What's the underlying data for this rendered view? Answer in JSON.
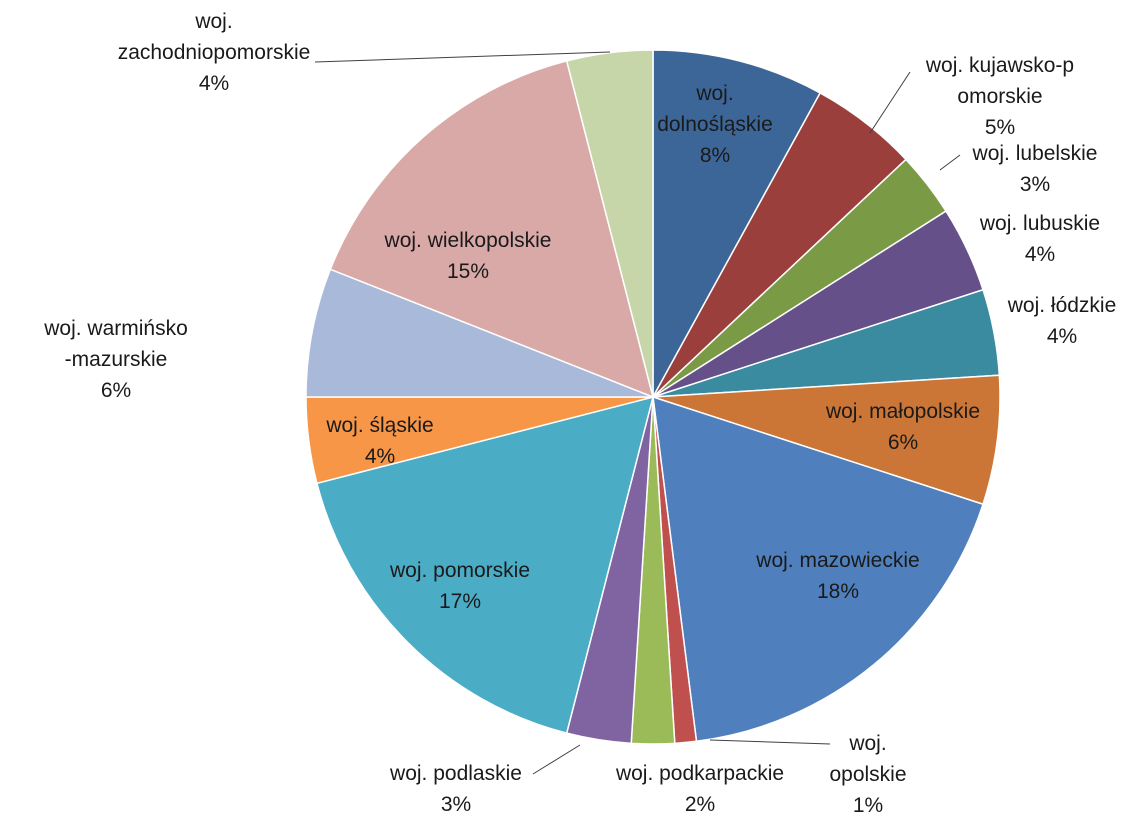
{
  "chart_data": {
    "type": "pie",
    "title": "",
    "series": [
      {
        "values": [
          8,
          5,
          3,
          4,
          4,
          6,
          18,
          1,
          2,
          3,
          17,
          4,
          6,
          15,
          4
        ],
        "labels": [
          "woj. dolnośląskie",
          "woj. kujawsko-pomorskie",
          "woj. lubelskie",
          "woj. lubuskie",
          "woj. łódzkie",
          "woj. małopolskie",
          "woj. mazowieckie",
          "woj. opolskie",
          "woj. podkarpackie",
          "woj. podlaskie",
          "woj. pomorskie",
          "woj. śląskie",
          "woj. warmińsko-mazurskie",
          "woj. wielkopolskie",
          "woj. zachodniopomorskie"
        ],
        "percent_labels": [
          "8%",
          "5%",
          "3%",
          "4%",
          "4%",
          "6%",
          "18%",
          "1%",
          "2%",
          "3%",
          "17%",
          "4%",
          "6%",
          "15%",
          "4%"
        ],
        "colors": [
          "#3D6698",
          "#9B3F3D",
          "#7B9A45",
          "#65508A",
          "#3A8AA0",
          "#CB7537",
          "#4F80BD",
          "#C0504D",
          "#9BBB59",
          "#8064A2",
          "#4BACC6",
          "#F79646",
          "#A9B9D9",
          "#D9A9A8",
          "#C6D6A9"
        ]
      }
    ],
    "legend": "none",
    "data_labels": "category name and percentage"
  }
}
